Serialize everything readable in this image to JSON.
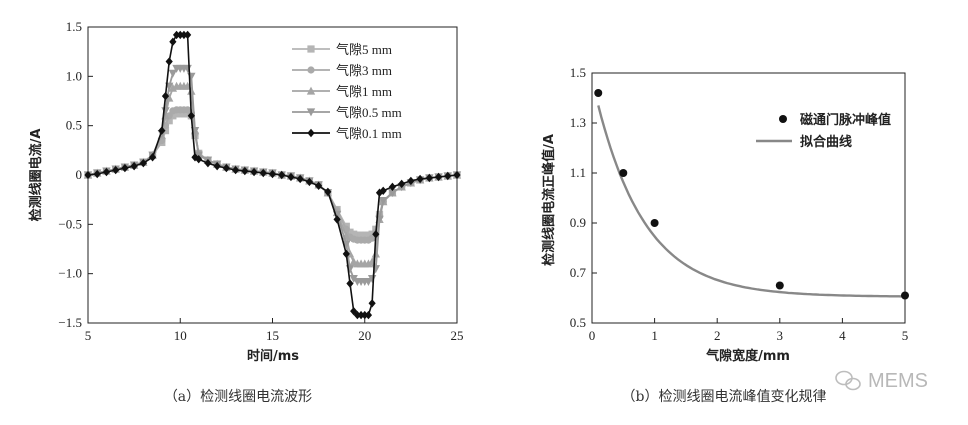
{
  "chart_data": [
    {
      "type": "line",
      "caption": "（a）检测线圈电流波形",
      "xlabel": "时间/ms",
      "ylabel": "检测线圈电流/A",
      "xlim": [
        5,
        25
      ],
      "ylim": [
        -1.5,
        1.5
      ],
      "xticks": [
        "5",
        "10",
        "15",
        "20",
        "25"
      ],
      "yticks": [
        "1.5",
        "1.0",
        "0.5",
        "0",
        "−0.5",
        "−1.0",
        "−1.5"
      ],
      "x": [
        5.0,
        5.5,
        6.0,
        6.5,
        7.0,
        7.5,
        8.0,
        8.5,
        9.0,
        9.2,
        9.4,
        9.6,
        9.8,
        10.0,
        10.2,
        10.4,
        10.6,
        10.8,
        11.0,
        11.5,
        12.0,
        12.5,
        13.0,
        13.5,
        14.0,
        14.5,
        15.0,
        15.5,
        16.0,
        16.5,
        17.0,
        17.5,
        18.0,
        18.5,
        19.0,
        19.2,
        19.4,
        19.6,
        19.8,
        20.0,
        20.2,
        20.4,
        20.6,
        20.8,
        21.0,
        21.5,
        22.0,
        22.5,
        23.0,
        23.5,
        24.0,
        24.5,
        25.0
      ],
      "series": [
        {
          "name": "气隙5 mm",
          "marker": "square",
          "color": "#b5b5b5",
          "values": [
            0.0,
            0.02,
            0.04,
            0.06,
            0.08,
            0.1,
            0.13,
            0.2,
            0.33,
            0.45,
            0.55,
            0.6,
            0.62,
            0.62,
            0.62,
            0.62,
            0.6,
            0.4,
            0.22,
            0.15,
            0.11,
            0.08,
            0.06,
            0.05,
            0.04,
            0.03,
            0.02,
            0.0,
            -0.01,
            -0.03,
            -0.06,
            -0.1,
            -0.18,
            -0.35,
            -0.52,
            -0.58,
            -0.6,
            -0.61,
            -0.61,
            -0.61,
            -0.61,
            -0.6,
            -0.55,
            -0.4,
            -0.26,
            -0.18,
            -0.12,
            -0.08,
            -0.05,
            -0.03,
            -0.02,
            -0.01,
            0.0
          ]
        },
        {
          "name": "气隙3 mm",
          "marker": "circle",
          "color": "#aaaaaa",
          "values": [
            0.0,
            0.02,
            0.04,
            0.06,
            0.08,
            0.1,
            0.13,
            0.2,
            0.35,
            0.5,
            0.6,
            0.65,
            0.66,
            0.66,
            0.66,
            0.66,
            0.63,
            0.42,
            0.22,
            0.15,
            0.11,
            0.08,
            0.06,
            0.05,
            0.04,
            0.03,
            0.02,
            0.0,
            -0.01,
            -0.03,
            -0.06,
            -0.1,
            -0.18,
            -0.36,
            -0.55,
            -0.63,
            -0.65,
            -0.66,
            -0.66,
            -0.66,
            -0.66,
            -0.64,
            -0.58,
            -0.42,
            -0.27,
            -0.18,
            -0.12,
            -0.08,
            -0.05,
            -0.03,
            -0.02,
            -0.01,
            0.0
          ]
        },
        {
          "name": "气隙1 mm",
          "marker": "triangle-up",
          "color": "#a5a5a5",
          "values": [
            0.0,
            0.02,
            0.04,
            0.06,
            0.08,
            0.1,
            0.13,
            0.2,
            0.4,
            0.6,
            0.78,
            0.88,
            0.9,
            0.9,
            0.9,
            0.9,
            0.85,
            0.45,
            0.21,
            0.15,
            0.11,
            0.08,
            0.06,
            0.05,
            0.04,
            0.03,
            0.02,
            0.0,
            -0.01,
            -0.03,
            -0.06,
            -0.1,
            -0.18,
            -0.38,
            -0.62,
            -0.8,
            -0.88,
            -0.9,
            -0.9,
            -0.9,
            -0.9,
            -0.88,
            -0.8,
            -0.45,
            -0.27,
            -0.18,
            -0.12,
            -0.08,
            -0.05,
            -0.03,
            -0.02,
            -0.01,
            0.0
          ]
        },
        {
          "name": "气隙0.5 mm",
          "marker": "triangle-down",
          "color": "#9a9a9a",
          "values": [
            0.0,
            0.02,
            0.04,
            0.06,
            0.08,
            0.1,
            0.13,
            0.2,
            0.42,
            0.65,
            0.9,
            1.03,
            1.08,
            1.08,
            1.08,
            1.08,
            1.0,
            0.45,
            0.2,
            0.15,
            0.11,
            0.08,
            0.06,
            0.05,
            0.04,
            0.03,
            0.02,
            0.0,
            -0.01,
            -0.03,
            -0.06,
            -0.1,
            -0.18,
            -0.4,
            -0.7,
            -0.95,
            -1.05,
            -1.08,
            -1.08,
            -1.08,
            -1.08,
            -1.05,
            -0.95,
            -0.45,
            -0.26,
            -0.18,
            -0.12,
            -0.08,
            -0.05,
            -0.03,
            -0.02,
            -0.01,
            0.0
          ]
        },
        {
          "name": "气隙0.1 mm",
          "marker": "diamond",
          "color": "#111111",
          "values": [
            0.0,
            0.01,
            0.03,
            0.05,
            0.07,
            0.09,
            0.12,
            0.18,
            0.45,
            0.8,
            1.15,
            1.35,
            1.42,
            1.42,
            1.42,
            1.42,
            0.6,
            0.18,
            0.16,
            0.12,
            0.09,
            0.07,
            0.05,
            0.04,
            0.03,
            0.02,
            0.01,
            0.0,
            -0.02,
            -0.04,
            -0.07,
            -0.11,
            -0.17,
            -0.45,
            -0.8,
            -1.1,
            -1.38,
            -1.42,
            -1.42,
            -1.42,
            -1.42,
            -1.3,
            -0.6,
            -0.18,
            -0.16,
            -0.12,
            -0.09,
            -0.06,
            -0.04,
            -0.03,
            -0.02,
            -0.01,
            0.0
          ]
        }
      ]
    },
    {
      "type": "scatter",
      "caption": "（b）检测线圈电流峰值变化规律",
      "xlabel": "气隙宽度/mm",
      "ylabel": "检测线圈电流正峰值/A",
      "xlim": [
        0,
        5
      ],
      "ylim": [
        0.5,
        1.5
      ],
      "xticks": [
        "0",
        "1",
        "2",
        "3",
        "4",
        "5"
      ],
      "yticks": [
        "1.5",
        "1.3",
        "1.1",
        "0.9",
        "0.7",
        "0.5"
      ],
      "series": [
        {
          "name": "磁通门脉冲峰值",
          "marker": "circle",
          "color": "#111111",
          "x": [
            0.1,
            0.5,
            1.0,
            3.0,
            5.0
          ],
          "y": [
            1.42,
            1.1,
            0.9,
            0.65,
            0.61
          ]
        },
        {
          "name": "拟合曲线",
          "kind": "line",
          "color": "#888888",
          "fit": {
            "form": "a*exp(-x/b)+c",
            "a": 0.87,
            "b": 0.78,
            "c": 0.605
          }
        }
      ]
    }
  ],
  "watermark": "MEMS"
}
